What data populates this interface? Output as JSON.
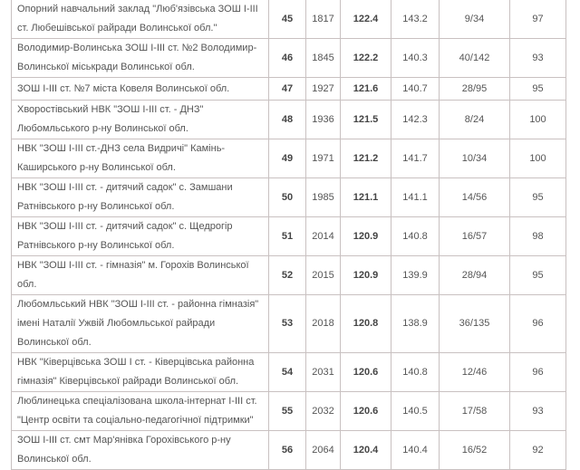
{
  "table": {
    "rows": [
      {
        "name": "Опорний навчальний заклад \"Люб'язівська ЗОШ І-ІІІ ст. Любешівської райради Волинської обл.\"",
        "rank": "45",
        "place": "1817",
        "score": "122.4",
        "max": "143.2",
        "ratio": "9/34",
        "percent": "97"
      },
      {
        "name": "Володимир-Волинська ЗОШ І-ІІІ ст. №2 Володимир-Волинської міськради Волинської обл.",
        "rank": "46",
        "place": "1845",
        "score": "122.2",
        "max": "140.3",
        "ratio": "40/142",
        "percent": "93"
      },
      {
        "name": "ЗОШ І-ІІІ ст. №7 міста Ковеля Волинської обл.",
        "rank": "47",
        "place": "1927",
        "score": "121.6",
        "max": "140.7",
        "ratio": "28/95",
        "percent": "95"
      },
      {
        "name": "Хворостівський НВК \"ЗОШ І-ІІІ ст. - ДНЗ\" Любомльського р-ну Волинської обл.",
        "rank": "48",
        "place": "1936",
        "score": "121.5",
        "max": "142.3",
        "ratio": "8/24",
        "percent": "100"
      },
      {
        "name": "НВК \"ЗОШ І-ІІІ ст.-ДНЗ села Видричі\" Камінь-Каширського р-ну Волинської обл.",
        "rank": "49",
        "place": "1971",
        "score": "121.2",
        "max": "141.7",
        "ratio": "10/34",
        "percent": "100"
      },
      {
        "name": "НВК \"ЗОШ І-ІІІ ст. - дитячий садок\" с. Замшани Ратнівського р-ну Волинської обл.",
        "rank": "50",
        "place": "1985",
        "score": "121.1",
        "max": "141.1",
        "ratio": "14/56",
        "percent": "95"
      },
      {
        "name": "НВК \"ЗОШ І-ІІІ ст. - дитячий садок\" с. Щедрогір Ратнівського р-ну Волинської обл.",
        "rank": "51",
        "place": "2014",
        "score": "120.9",
        "max": "140.8",
        "ratio": "16/57",
        "percent": "98"
      },
      {
        "name": "НВК \"ЗОШ І-ІІІ ст. - гімназія\" м. Горохів Волинської обл.",
        "rank": "52",
        "place": "2015",
        "score": "120.9",
        "max": "139.9",
        "ratio": "28/94",
        "percent": "95"
      },
      {
        "name": "Любомльський НВК \"ЗОШ І-ІІІ ст. - районна гімназія\" імені Наталії Ужвій Любомльської райради Волинської обл.",
        "rank": "53",
        "place": "2018",
        "score": "120.8",
        "max": "138.9",
        "ratio": "36/135",
        "percent": "96"
      },
      {
        "name": "НВК \"Ківерцівська ЗОШ І ст. - Ківерцівська районна гімназія\" Ківерцівської райради Волинської обл.",
        "rank": "54",
        "place": "2031",
        "score": "120.6",
        "max": "140.8",
        "ratio": "12/46",
        "percent": "96"
      },
      {
        "name": "Люблинецька спеціалізована школа-інтернат І-ІІІ ст. \"Центр освіти та соціально-педагогічної підтримки\"",
        "rank": "55",
        "place": "2032",
        "score": "120.6",
        "max": "140.5",
        "ratio": "17/58",
        "percent": "93"
      },
      {
        "name": "ЗОШ І-ІІІ ст. смт Мар'янівка Горохівського р-ну Волинської обл.",
        "rank": "56",
        "place": "2064",
        "score": "120.4",
        "max": "140.4",
        "ratio": "16/52",
        "percent": "92"
      }
    ]
  }
}
